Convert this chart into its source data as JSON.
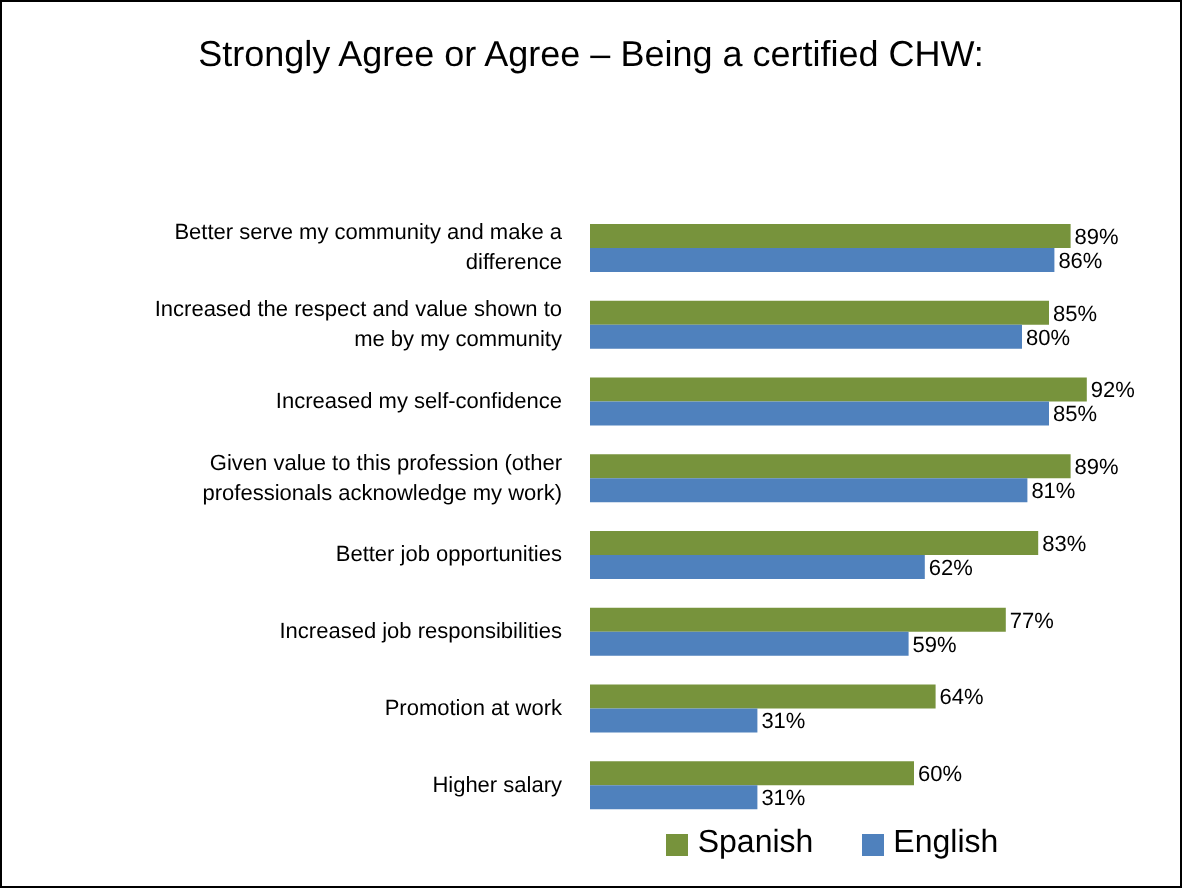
{
  "chart_data": {
    "type": "bar",
    "orientation": "horizontal",
    "title": "Strongly Agree or Agree – Being a certified CHW:",
    "categories": [
      "Better serve my community and make a difference",
      "Increased the respect and value shown to me by my community",
      "Increased my self-confidence",
      "Given value to this profession (other professionals acknowledge my work)",
      "Better job opportunities",
      "Increased job responsibilities",
      "Promotion at work",
      "Higher salary"
    ],
    "series": [
      {
        "name": "Spanish",
        "color": "#77933c",
        "values": [
          89,
          85,
          92,
          89,
          83,
          77,
          64,
          60
        ],
        "value_labels": [
          "89%",
          "85%",
          "92%",
          "89%",
          "83%",
          "77%",
          "64%",
          "60%"
        ]
      },
      {
        "name": "English",
        "color": "#4f81bd",
        "values": [
          86,
          80,
          85,
          81,
          62,
          59,
          31,
          31
        ],
        "value_labels": [
          "86%",
          "80%",
          "85%",
          "81%",
          "62%",
          "59%",
          "31%",
          "31%"
        ]
      }
    ],
    "legend": "bottom",
    "tick_labels": "y"
  }
}
